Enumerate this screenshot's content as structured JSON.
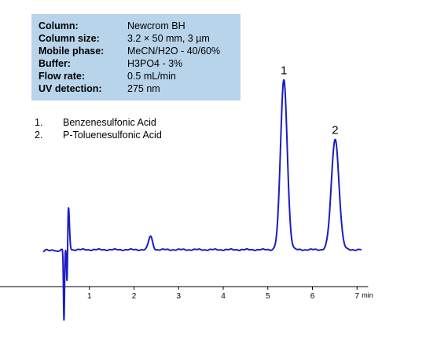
{
  "conditions": [
    {
      "label": "Column:",
      "value": "Newcrom BH"
    },
    {
      "label": "Column size:",
      "value": "3.2 × 50 mm, 3 µm"
    },
    {
      "label": "Mobile phase:",
      "value": "MeCN/H2O  - 40/60%"
    },
    {
      "label": "Buffer:",
      "value": "H3PO4 - 3%"
    },
    {
      "label": "Flow rate:",
      "value": "0.5 mL/min"
    },
    {
      "label": "UV detection:",
      "value": "275 nm"
    }
  ],
  "compounds": [
    {
      "number": "1.",
      "name": "Benzenesulfonic Acid"
    },
    {
      "number": "2.",
      "name": "P-Toluenesulfonic Acid"
    }
  ],
  "colors": {
    "trace": "#1c1cc4",
    "axis": "#000000",
    "box": "#b8d4ea"
  },
  "chart_data": {
    "type": "line",
    "x_unit": "min",
    "x_ticks": [
      "1",
      "2",
      "3",
      "4",
      "5",
      "6",
      "7"
    ],
    "xlim": [
      -1.05,
      7.25
    ],
    "peak_labels": [
      "1",
      "2"
    ],
    "baseline": 0,
    "features": [
      {
        "center": 0.53,
        "height": 55,
        "width": 0.022
      },
      {
        "center": 0.5,
        "height": -60,
        "width": 0.012
      },
      {
        "center": 0.43,
        "height": -90,
        "width": 0.012
      },
      {
        "center": 2.37,
        "height": 17,
        "width": 0.045
      },
      {
        "center": 5.36,
        "height": 216,
        "width": 0.075
      },
      {
        "center": 6.51,
        "height": 141,
        "width": 0.085
      }
    ],
    "peaks": [
      {
        "label": "1",
        "x": 5.36
      },
      {
        "label": "2",
        "x": 6.51
      }
    ],
    "grid": false
  }
}
